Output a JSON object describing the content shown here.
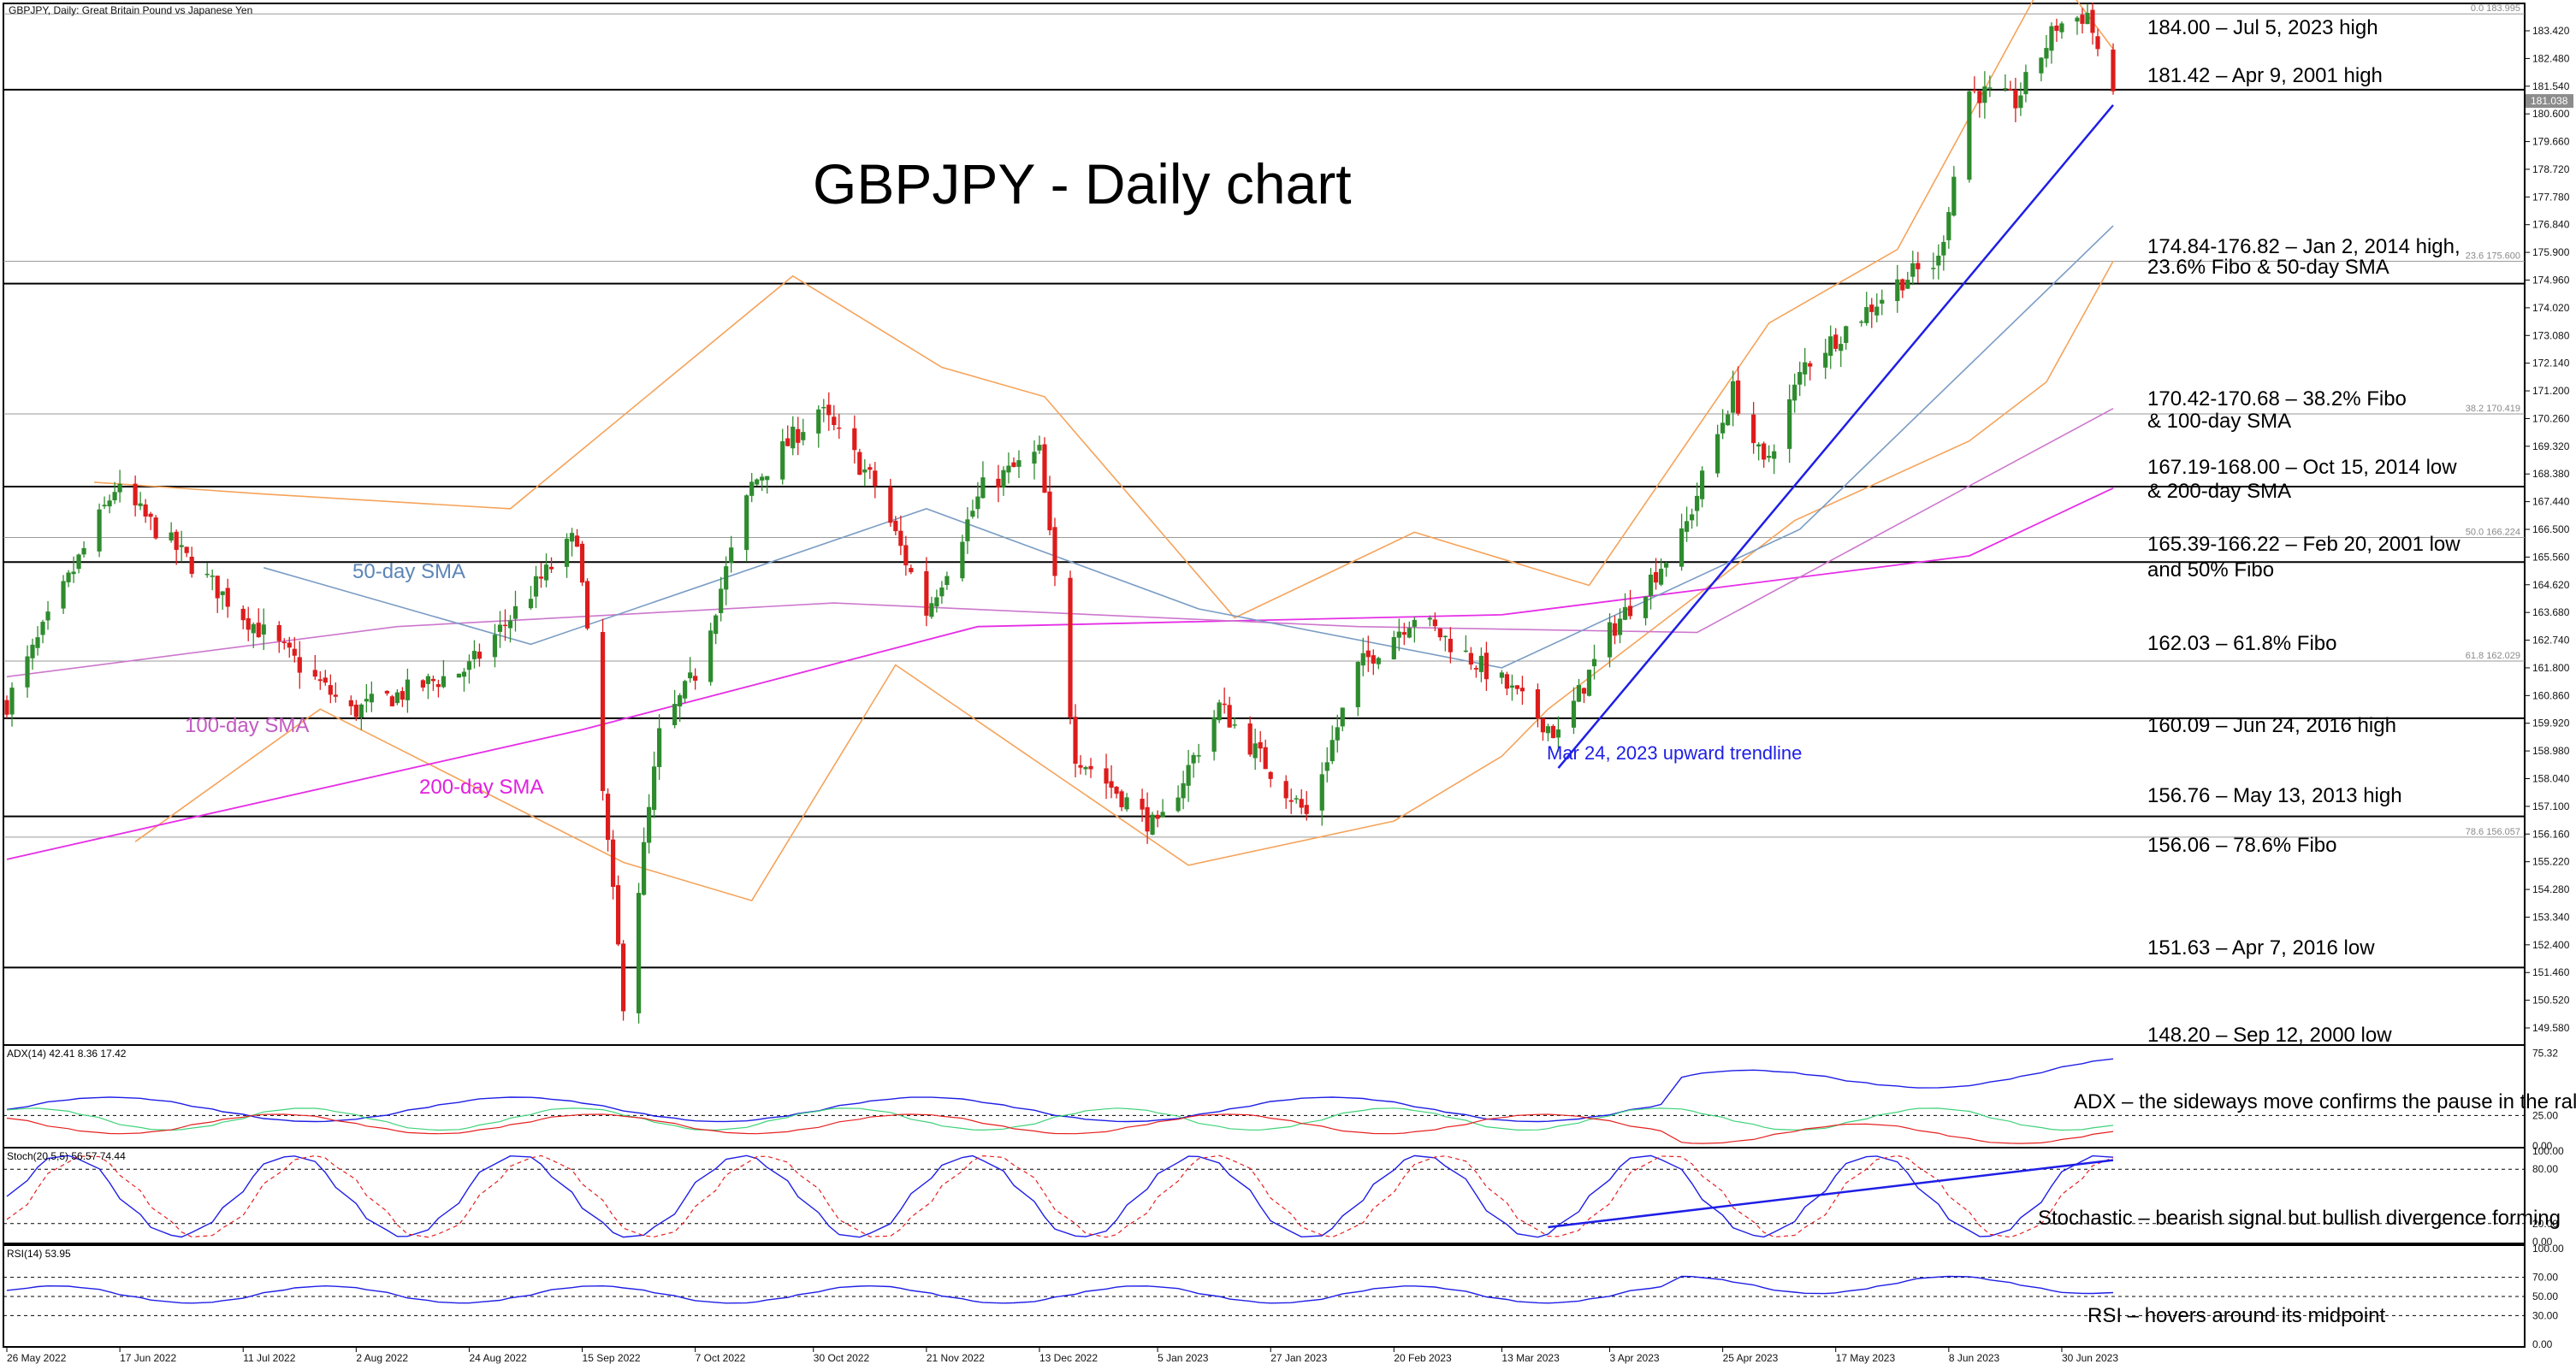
{
  "header": {
    "symbol_title": "GBPJPY, Daily:  Great Britain Pound vs Japanese Yen"
  },
  "chart_title": "GBPJPY - Daily chart",
  "colors": {
    "background": "#ffffff",
    "grid_line": "#000000",
    "candle_up": "#2e8b2e",
    "candle_down": "#dd1c1c",
    "sma50": "#7a9cc4",
    "sma100": "#cc77cc",
    "sma200": "#e62ee6",
    "bollinger": "#f5a35a",
    "trendline": "#1e1ee6",
    "adx_main": "#1e1ee6",
    "adx_plus_di": "#3fd27a",
    "adx_minus_di": "#e62020",
    "stoch_main": "#1e1ee6",
    "stoch_signal": "#e62020",
    "rsi": "#1e1ee6"
  },
  "price_axis": {
    "ticks": [
      "183.420",
      "182.480",
      "181.540",
      "180.600",
      "179.660",
      "178.720",
      "177.780",
      "176.840",
      "175.900",
      "174.960",
      "174.020",
      "173.080",
      "172.140",
      "171.200",
      "170.260",
      "169.320",
      "168.380",
      "167.440",
      "166.500",
      "165.560",
      "164.620",
      "163.680",
      "162.740",
      "161.800",
      "160.860",
      "159.920",
      "158.980",
      "158.040",
      "157.100",
      "156.160",
      "155.220",
      "154.280",
      "153.340",
      "152.400",
      "151.460",
      "150.520",
      "149.580"
    ],
    "current_price": "181.038"
  },
  "levels": [
    {
      "label": "184.00 – Jul 5, 2023 high"
    },
    {
      "label": "181.42 – Apr 9, 2001 high"
    },
    {
      "label": "174.84-176.82 – Jan 2, 2014 high,",
      "label2": "23.6% Fibo & 50-day SMA"
    },
    {
      "label": "170.42-170.68 – 38.2% Fibo",
      "label2": "& 100-day SMA"
    },
    {
      "label": "167.19-168.00 – Oct 15, 2014 low",
      "label2": "& 200-day SMA"
    },
    {
      "label": "165.39-166.22 – Feb 20, 2001 low",
      "label2": "and 50% Fibo"
    },
    {
      "label": "162.03 – 61.8% Fibo"
    },
    {
      "label": "160.09 – Jun 24, 2016 high"
    },
    {
      "label": "156.76 – May 13, 2013 high"
    },
    {
      "label": "156.06 – 78.6% Fibo"
    },
    {
      "label": "151.63 – Apr 7, 2016 low"
    },
    {
      "label": "148.20 – Sep 12, 2000 low"
    }
  ],
  "fibo_labels": [
    "0.0 183.995",
    "23.6 175.600",
    "38.2 170.419",
    "50.0 166.224",
    "61.8 162.029",
    "78.6 156.057"
  ],
  "annotations": {
    "sma50": "50-day SMA",
    "sma100": "100-day SMA",
    "sma200": "200-day SMA",
    "trendline": "Mar 24, 2023 upward trendline"
  },
  "adx_panel": {
    "header": "ADX(14) 42.41 8.36 17.42",
    "comment": "ADX – the sideways move confirms the pause in the rally",
    "axis_ticks": [
      "75.32",
      "25.00",
      "0.00"
    ]
  },
  "stoch_panel": {
    "header": "Stoch(20,5,5) 56.57 74.44",
    "comment": "Stochastic – bearish signal but bullish divergence forming",
    "axis_ticks": [
      "100.00",
      "80.00",
      "20.00",
      "0.00"
    ]
  },
  "rsi_panel": {
    "header": "RSI(14) 53.95",
    "comment": "RSI – hovers around its midpoint",
    "axis_ticks": [
      "100.00",
      "70.00",
      "50.00",
      "30.00",
      "0.00"
    ]
  },
  "date_axis": {
    "labels": [
      "26 May 2022",
      "17 Jun 2022",
      "11 Jul 2022",
      "2 Aug 2022",
      "24 Aug 2022",
      "15 Sep 2022",
      "7 Oct 2022",
      "30 Oct 2022",
      "21 Nov 2022",
      "13 Dec 2022",
      "5 Jan 2023",
      "27 Jan 2023",
      "20 Feb 2023",
      "13 Mar 2023",
      "3 Apr 2023",
      "25 Apr 2023",
      "17 May 2023",
      "8 Jun 2023",
      "30 Jun 2023"
    ]
  },
  "chart_data": {
    "type": "candlestick",
    "title": "GBPJPY - Daily chart",
    "x_range": [
      "26 May 2022",
      "10 Jul 2023"
    ],
    "y_range": [
      148.2,
      184.6
    ],
    "price_anchors": [
      [
        "26 May 2022",
        160.6
      ],
      [
        "16 Jun 2022",
        167.9
      ],
      [
        "11 Jul 2022",
        163.6
      ],
      [
        "1 Aug 2022",
        160.3
      ],
      [
        "24 Aug 2022",
        161.8
      ],
      [
        "14 Sep 2022",
        166.3
      ],
      [
        "23 Sep 2022",
        150.5
      ],
      [
        "30 Sep 2022",
        159.5
      ],
      [
        "7 Oct 2022",
        161.6
      ],
      [
        "18 Oct 2022",
        168.0
      ],
      [
        "31 Oct 2022",
        170.6
      ],
      [
        "11 Nov 2022",
        168.0
      ],
      [
        "21 Nov 2022",
        163.7
      ],
      [
        "2 Dec 2022",
        167.9
      ],
      [
        "13 Dec 2022",
        169.1
      ],
      [
        "20 Dec 2022",
        158.9
      ],
      [
        "5 Jan 2023",
        156.3
      ],
      [
        "17 Jan 2023",
        160.5
      ],
      [
        "3 Feb 2023",
        156.8
      ],
      [
        "13 Feb 2023",
        161.8
      ],
      [
        "24 Feb 2023",
        163.6
      ],
      [
        "13 Mar 2023",
        161.3
      ],
      [
        "24 Mar 2023",
        159.5
      ],
      [
        "3 Apr 2023",
        163.0
      ],
      [
        "17 Apr 2023",
        166.2
      ],
      [
        "27 Apr 2023",
        171.2
      ],
      [
        "3 May 2023",
        168.6
      ],
      [
        "11 May 2023",
        172.1
      ],
      [
        "30 May 2023",
        175.0
      ],
      [
        "6 Jun 2023",
        175.6
      ],
      [
        "12 Jun 2023",
        181.4
      ],
      [
        "21 Jun 2023",
        181.0
      ],
      [
        "29 Jun 2023",
        183.6
      ],
      [
        "5 Jul 2023",
        184.0
      ],
      [
        "10 Jul 2023",
        181.0
      ]
    ],
    "sma50": [
      [
        "15 Jul 2022",
        165.2
      ],
      [
        "5 Sep 2022",
        162.6
      ],
      [
        "21 Nov 2022",
        167.2
      ],
      [
        "13 Jan 2023",
        163.8
      ],
      [
        "13 Mar 2023",
        161.8
      ],
      [
        "10 May 2023",
        166.5
      ],
      [
        "10 Jul 2023",
        176.8
      ]
    ],
    "sma100": [
      [
        "26 May 2022",
        161.5
      ],
      [
        "10 Aug 2022",
        163.2
      ],
      [
        "3 Nov 2022",
        164.0
      ],
      [
        "13 Feb 2023",
        163.2
      ],
      [
        "20 Apr 2023",
        163.0
      ],
      [
        "10 Jul 2023",
        170.6
      ]
    ],
    "sma200": [
      [
        "26 May 2022",
        155.3
      ],
      [
        "15 Sep 2022",
        159.7
      ],
      [
        "1 Dec 2022",
        163.2
      ],
      [
        "13 Mar 2023",
        163.6
      ],
      [
        "12 Jun 2023",
        165.6
      ],
      [
        "10 Jul 2023",
        167.9
      ]
    ],
    "bollinger_upper": [
      [
        "12 Jun 2022",
        168.1
      ],
      [
        "15 Jul 2022",
        167.7
      ],
      [
        "1 Sep 2022",
        167.2
      ],
      [
        "26 Oct 2022",
        175.1
      ],
      [
        "24 Nov 2022",
        172.0
      ],
      [
        "14 Dec 2022",
        171.0
      ],
      [
        "20 Jan 2023",
        163.5
      ],
      [
        "24 Feb 2023",
        166.4
      ],
      [
        "30 Mar 2023",
        164.6
      ],
      [
        "4 May 2023",
        173.5
      ],
      [
        "29 May 2023",
        176.0
      ],
      [
        "28 Jun 2023",
        185.6
      ],
      [
        "10 Jul 2023",
        182.8
      ]
    ],
    "bollinger_lower": [
      [
        "20 Jun 2022",
        155.9
      ],
      [
        "26 Jul 2022",
        160.4
      ],
      [
        "23 Sep 2022",
        155.2
      ],
      [
        "18 Oct 2022",
        153.9
      ],
      [
        "15 Nov 2022",
        161.9
      ],
      [
        "11 Jan 2023",
        155.1
      ],
      [
        "20 Feb 2023",
        156.6
      ],
      [
        "13 Mar 2023",
        158.8
      ],
      [
        "22 Mar 2023",
        160.4
      ],
      [
        "9 May 2023",
        166.8
      ],
      [
        "12 Jun 2023",
        169.5
      ],
      [
        "27 Jun 2023",
        171.5
      ],
      [
        "10 Jul 2023",
        175.6
      ]
    ],
    "trendline": [
      [
        "24 Mar 2023",
        158.4
      ],
      [
        "10 Jul 2023",
        180.9
      ]
    ],
    "horizontal_levels": [
      184.0,
      181.42,
      174.84,
      167.95,
      165.39,
      160.09,
      156.76,
      151.63
    ],
    "fibo_levels": [
      183.995,
      175.6,
      170.419,
      166.224,
      162.029,
      156.057
    ],
    "adx": {
      "adx": 42.41,
      "plus_di": 8.36,
      "minus_di": 17.42,
      "ylim": [
        0,
        80
      ]
    },
    "stochastic": {
      "main": 56.57,
      "signal": 74.44,
      "ylim": [
        0,
        100
      ],
      "divergence_line": [
        [
          "22 Mar 2023",
          16
        ],
        [
          "10 Jul 2023",
          90
        ]
      ]
    },
    "rsi": {
      "value": 53.95,
      "ylim": [
        0,
        100
      ],
      "levels": [
        70,
        50,
        30
      ]
    }
  }
}
